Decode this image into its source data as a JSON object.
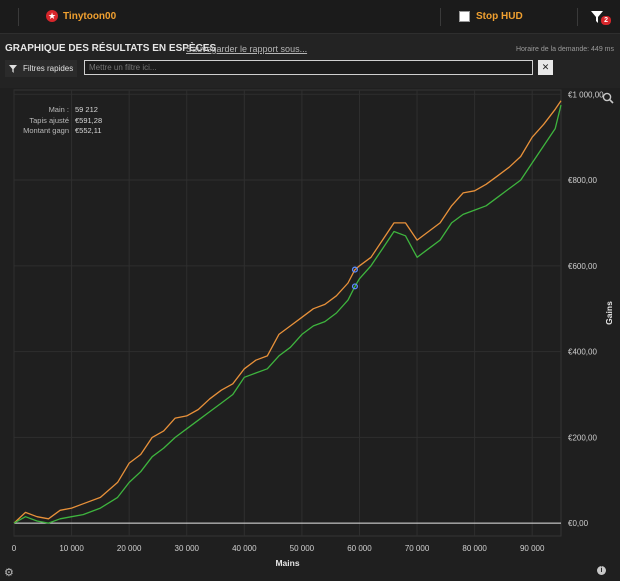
{
  "header": {
    "player_name": "Tinytoon00",
    "stop_hud_label": "Stop HUD",
    "filter_badge": "2"
  },
  "report": {
    "title": "GRAPHIQUE DES RÉSULTATS EN ESPÈCES",
    "save_link": "Sauvegarder le rapport sous...",
    "timing": "Horaire de la demande: 449 ms"
  },
  "filters": {
    "quick_label": "Filtres rapides",
    "placeholder": "Mettre un filtre ici..."
  },
  "stats": [
    {
      "label": "Main :",
      "value": "59 212"
    },
    {
      "label": "Tapis ajusté",
      "value": "€591,28"
    },
    {
      "label": "Montant gagn",
      "value": "€552,11"
    }
  ],
  "chart_data": {
    "type": "line",
    "xlabel": "Mains",
    "ylabel": "Gains",
    "xlim": [
      0,
      95000
    ],
    "ylim": [
      -30,
      1010
    ],
    "x_ticks": [
      0,
      10000,
      20000,
      30000,
      40000,
      50000,
      60000,
      70000,
      80000,
      90000
    ],
    "x_tick_labels": [
      "0",
      "10 000",
      "20 000",
      "30 000",
      "40 000",
      "50 000",
      "60 000",
      "70 000",
      "80 000",
      "90 000"
    ],
    "y_ticks": [
      0,
      200,
      400,
      600,
      800,
      1000
    ],
    "y_tick_labels": [
      "€0,00",
      "€200,00",
      "€400,00",
      "€600,00",
      "€800,00",
      "€1 000,00"
    ],
    "grid": true,
    "marker": {
      "x": 59212,
      "values": [
        591.28,
        552.11
      ]
    },
    "series": [
      {
        "color": "#e8913a",
        "x": [
          0,
          2000,
          4000,
          6000,
          8000,
          10000,
          12000,
          15000,
          18000,
          20000,
          22000,
          24000,
          26000,
          28000,
          30000,
          32000,
          34000,
          36000,
          38000,
          40000,
          42000,
          44000,
          46000,
          48000,
          50000,
          52000,
          54000,
          56000,
          58000,
          59212,
          60000,
          62000,
          64000,
          66000,
          68000,
          70000,
          72000,
          74000,
          76000,
          78000,
          80000,
          82000,
          84000,
          86000,
          88000,
          90000,
          92000,
          94000,
          95000
        ],
        "y": [
          0,
          25,
          15,
          10,
          30,
          35,
          45,
          60,
          95,
          140,
          160,
          200,
          215,
          245,
          250,
          265,
          290,
          310,
          325,
          360,
          380,
          390,
          440,
          460,
          480,
          500,
          510,
          530,
          560,
          591,
          600,
          620,
          660,
          700,
          700,
          660,
          680,
          700,
          740,
          770,
          775,
          790,
          810,
          830,
          855,
          900,
          930,
          965,
          985
        ]
      },
      {
        "color": "#3eb43e",
        "x": [
          0,
          2000,
          4000,
          6000,
          8000,
          10000,
          12000,
          15000,
          18000,
          20000,
          22000,
          24000,
          26000,
          28000,
          30000,
          32000,
          34000,
          36000,
          38000,
          40000,
          42000,
          44000,
          46000,
          48000,
          50000,
          52000,
          54000,
          56000,
          58000,
          59212,
          60000,
          62000,
          64000,
          66000,
          68000,
          70000,
          72000,
          74000,
          76000,
          78000,
          80000,
          82000,
          84000,
          86000,
          88000,
          90000,
          92000,
          94000,
          95000
        ],
        "y": [
          0,
          15,
          5,
          0,
          10,
          15,
          20,
          35,
          60,
          95,
          120,
          155,
          175,
          200,
          220,
          240,
          260,
          280,
          300,
          340,
          350,
          360,
          390,
          410,
          440,
          460,
          470,
          490,
          520,
          552,
          570,
          600,
          640,
          680,
          670,
          620,
          640,
          660,
          700,
          720,
          730,
          740,
          760,
          780,
          800,
          840,
          880,
          920,
          975
        ]
      }
    ]
  }
}
